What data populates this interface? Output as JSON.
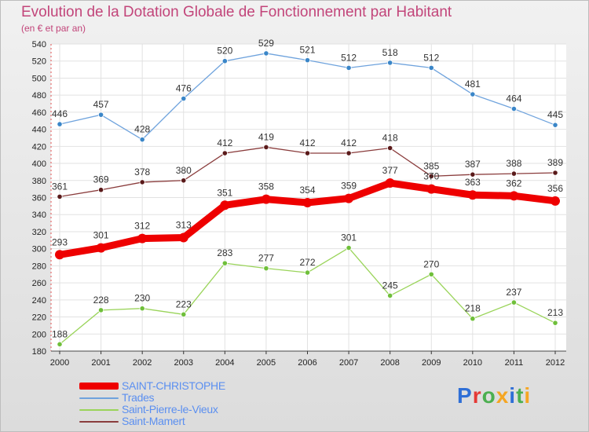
{
  "header": {
    "title": "Evolution de la Dotation Globale de Fonctionnement par Habitant",
    "subtitle": "(en € et par an)"
  },
  "logo": {
    "text": "Proxiti",
    "colors": [
      "#2f6fd6",
      "#e53935",
      "#4caf50",
      "#f5a623",
      "#2f6fd6",
      "#4caf50",
      "#f5a623"
    ]
  },
  "chart_data": {
    "type": "line",
    "title": "Evolution de la Dotation Globale de Fonctionnement par Habitant",
    "subtitle": "(en € et par an)",
    "xlabel": "",
    "ylabel": "",
    "ylim": [
      180,
      540
    ],
    "yticks": [
      180,
      200,
      220,
      240,
      260,
      280,
      300,
      320,
      340,
      360,
      380,
      400,
      420,
      440,
      460,
      480,
      500,
      520,
      540
    ],
    "x": [
      "2000",
      "2001",
      "2002",
      "2003",
      "2004",
      "2005",
      "2006",
      "2007",
      "2008",
      "2009",
      "2010",
      "2011",
      "2012"
    ],
    "grid": true,
    "legend": "bottom-left",
    "series": [
      {
        "name": "Trades",
        "color": "#6fa3dd",
        "marker": "#3a86c8",
        "values": [
          446,
          457,
          428,
          476,
          520,
          529,
          521,
          512,
          518,
          512,
          481,
          464,
          445
        ],
        "labels": [
          "446",
          "457",
          "428",
          "476",
          "520",
          "529",
          "521",
          "512",
          "518",
          "512",
          "481",
          "464",
          "445"
        ]
      },
      {
        "name": "Saint-Mamert",
        "color": "#8a3c3c",
        "marker": "#5a1a1a",
        "values": [
          361,
          369,
          378,
          380,
          412,
          419,
          412,
          412,
          418,
          385,
          387,
          388,
          389
        ],
        "labels": [
          "361",
          "369",
          "378",
          "380",
          "412",
          "419",
          "412",
          "412",
          "418",
          "385",
          "387",
          "388",
          "389"
        ]
      },
      {
        "name": "Saint-Pierre-le-Vieux",
        "color": "#9ad45a",
        "marker": "#6fbf3a",
        "values": [
          188,
          228,
          230,
          223,
          283,
          277,
          272,
          301,
          245,
          270,
          218,
          237,
          213
        ],
        "labels": [
          "188",
          "228",
          "230",
          "223",
          "283",
          "277",
          "272",
          "301",
          "245",
          "270",
          "218",
          "237",
          "213"
        ]
      },
      {
        "name": "SAINT-CHRISTOPHE",
        "color": "#ee0000",
        "marker": "#ee0000",
        "values": [
          293,
          301,
          312,
          313,
          351,
          358,
          354,
          359,
          377,
          370,
          363,
          362,
          356
        ],
        "labels": [
          "293",
          "301",
          "312",
          "313",
          "351",
          "358",
          "354",
          "359",
          "377",
          "370",
          "363",
          "362",
          "356"
        ]
      }
    ]
  },
  "legend": {
    "items": [
      {
        "label": "SAINT-CHRISTOPHE",
        "color": "#ee0000",
        "thickness": "thick"
      },
      {
        "label": "Trades",
        "color": "#6fa3dd",
        "thickness": "thin"
      },
      {
        "label": "Saint-Pierre-le-Vieux",
        "color": "#9ad45a",
        "thickness": "thin"
      },
      {
        "label": "Saint-Mamert",
        "color": "#8a3c3c",
        "thickness": "thin"
      }
    ]
  }
}
